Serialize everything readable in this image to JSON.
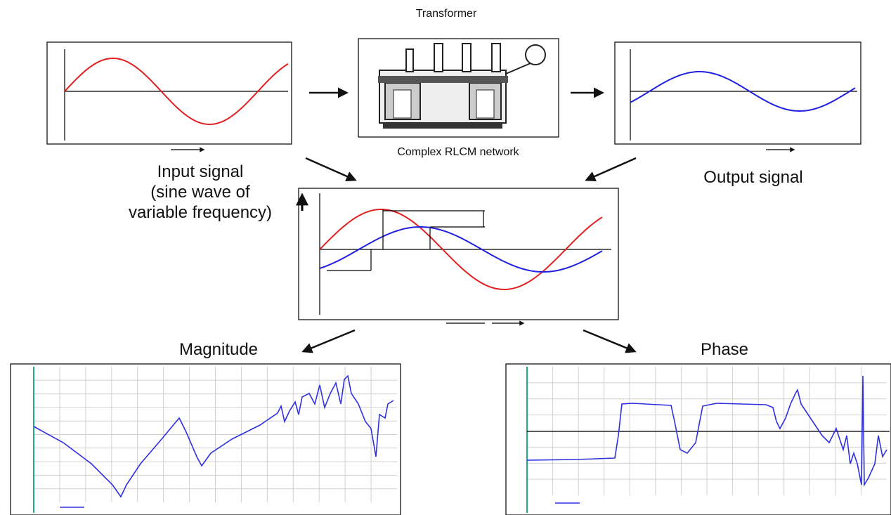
{
  "header": {
    "title": "Transformer"
  },
  "transformer": {
    "caption": "Complex RLCM network"
  },
  "input_signal": {
    "lines": [
      "Input signal",
      "(sine wave of",
      "variable frequency)"
    ]
  },
  "output_signal": {
    "label": "Output signal"
  },
  "magnitude": {
    "label": "Magnitude"
  },
  "phase": {
    "label": "Phase"
  }
}
